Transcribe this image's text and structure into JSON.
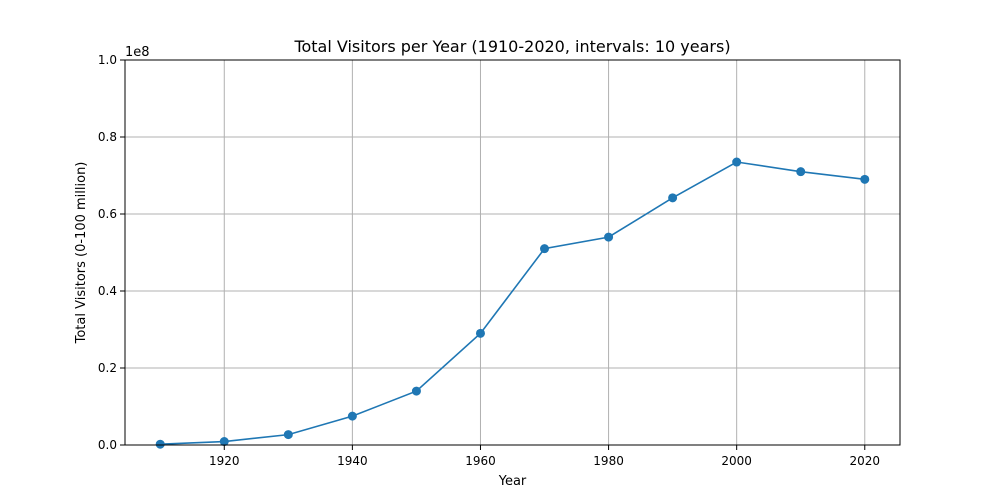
{
  "chart_data": {
    "type": "line",
    "title": "Total Visitors per Year (1910-2020, intervals: 10 years)",
    "xlabel": "Year",
    "ylabel": "Total Visitors (0-100 million)",
    "y_offset_label": "1e8",
    "x": [
      1910,
      1920,
      1930,
      1940,
      1950,
      1960,
      1970,
      1980,
      1990,
      2000,
      2010,
      2020
    ],
    "series": [
      {
        "values": [
          200000,
          900000,
          2700000,
          7500000,
          14000000,
          29000000,
          51000000,
          54000000,
          64200000,
          73500000,
          71000000,
          69000000
        ]
      }
    ],
    "xlim": [
      1904.5,
      2025.5
    ],
    "ylim": [
      0,
      100000000
    ],
    "x_ticks": [
      1920,
      1940,
      1960,
      1980,
      2000,
      2020
    ],
    "x_tick_labels": [
      "1920",
      "1940",
      "1960",
      "1980",
      "2000",
      "2020"
    ],
    "y_ticks": [
      0,
      20000000,
      40000000,
      60000000,
      80000000,
      100000000
    ],
    "y_tick_labels": [
      "0.0",
      "0.2",
      "0.4",
      "0.6",
      "0.8",
      "1.0"
    ],
    "grid": true,
    "line_color": "#1f77b4",
    "marker": "circle"
  }
}
